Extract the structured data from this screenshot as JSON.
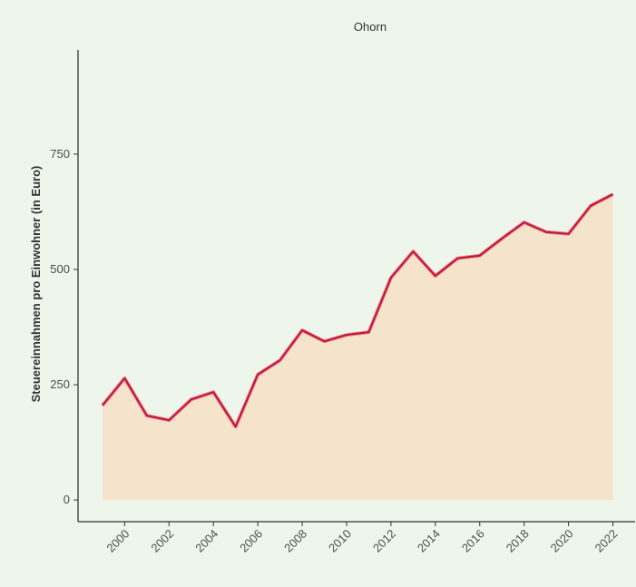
{
  "chart_data": {
    "type": "area",
    "title": "Ohorn",
    "y_label": "Steuereinnahmen pro Einwohner (in Euro)",
    "x": [
      1999,
      2000,
      2001,
      2002,
      2003,
      2004,
      2005,
      2006,
      2007,
      2008,
      2009,
      2010,
      2011,
      2012,
      2013,
      2014,
      2015,
      2016,
      2017,
      2018,
      2019,
      2020,
      2021,
      2022
    ],
    "values": [
      205,
      264,
      183,
      173,
      218,
      234,
      159,
      272,
      303,
      368,
      344,
      358,
      364,
      482,
      539,
      486,
      524,
      530,
      567,
      602,
      581,
      577,
      638,
      663
    ],
    "line_color": "#c0142f",
    "fill_color": "#f6e3cb",
    "xlim": [
      1997.9,
      2023
    ],
    "xticks": [
      2000,
      2002,
      2004,
      2006,
      2008,
      2010,
      2012,
      2014,
      2016,
      2018,
      2020,
      2022
    ],
    "ylim": [
      -47,
      976
    ],
    "yticks": [
      0,
      250,
      500,
      750
    ]
  }
}
